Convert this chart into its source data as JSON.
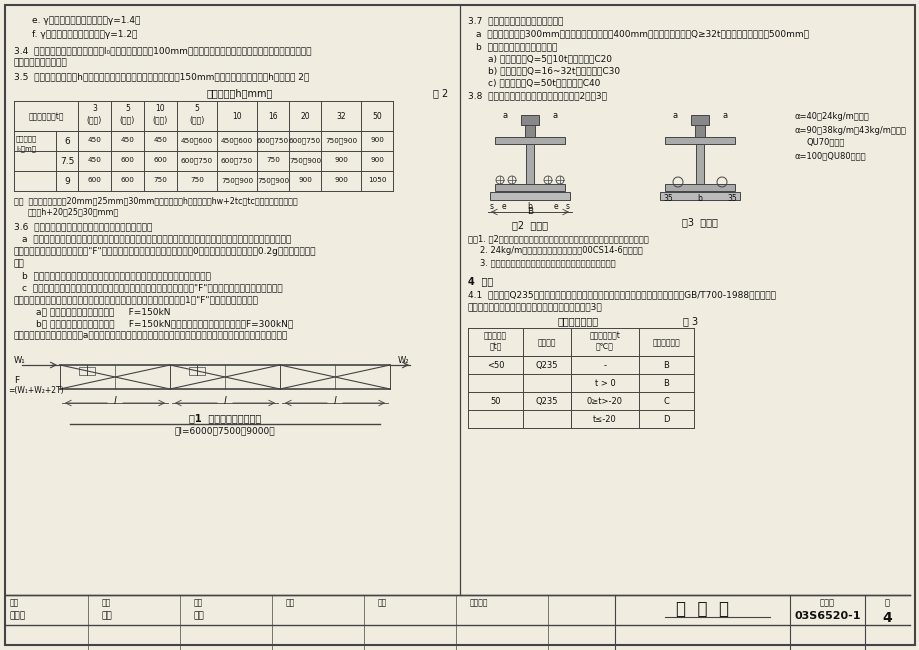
{
  "title": "总说明",
  "page_num": "03S6520-1",
  "page": "4",
  "bg_color": "#f0ece0",
  "border_color": "#444444",
  "text_color": "#111111",
  "table2_title": "吊车梁高度h（mm）",
  "table2_label": "表 2",
  "table3_title": "质量等级适用表",
  "table3_label": "表 3",
  "table2_headers": [
    "吊车起重量（t）",
    "3(梁式)",
    "5(梁式)",
    "10(梁式)",
    "5(桥式)",
    "10",
    "16",
    "20",
    "32",
    "50"
  ],
  "table2_rows": [
    [
      "6",
      "450",
      "450",
      "450",
      "450、600",
      "450、600",
      "600、750",
      "600、750",
      "750、900",
      "900"
    ],
    [
      "7.5",
      "450",
      "600",
      "600",
      "600、750",
      "600、750",
      "750",
      "750、900",
      "900",
      "900"
    ],
    [
      "9",
      "600",
      "600",
      "750",
      "750",
      "750、900",
      "750、900",
      "900",
      "900",
      "1050"
    ]
  ],
  "table3_headers": [
    "吊车起重量\n（t）",
    "钢材牌号",
    "使用工作温度t\n（℃）",
    "选用质量等级"
  ],
  "table3_rows": [
    [
      "<50",
      "Q235",
      "-",
      "B"
    ],
    [
      "",
      "",
      "t > 0",
      "B"
    ],
    [
      "50",
      "Q235",
      "0≥t>-20",
      "C"
    ],
    [
      "",
      "",
      "t≤-20",
      "D"
    ]
  ],
  "fig1_caption": "图1  柱间支撑布置示意图",
  "fig1_subcaption": "（l=6000、7500和9000）",
  "fig2_caption": "图2  焊接型",
  "fig3_caption": "图3  钻孔型",
  "bottom_title": "总  说  明",
  "bottom_drawing": "03S6520-1"
}
